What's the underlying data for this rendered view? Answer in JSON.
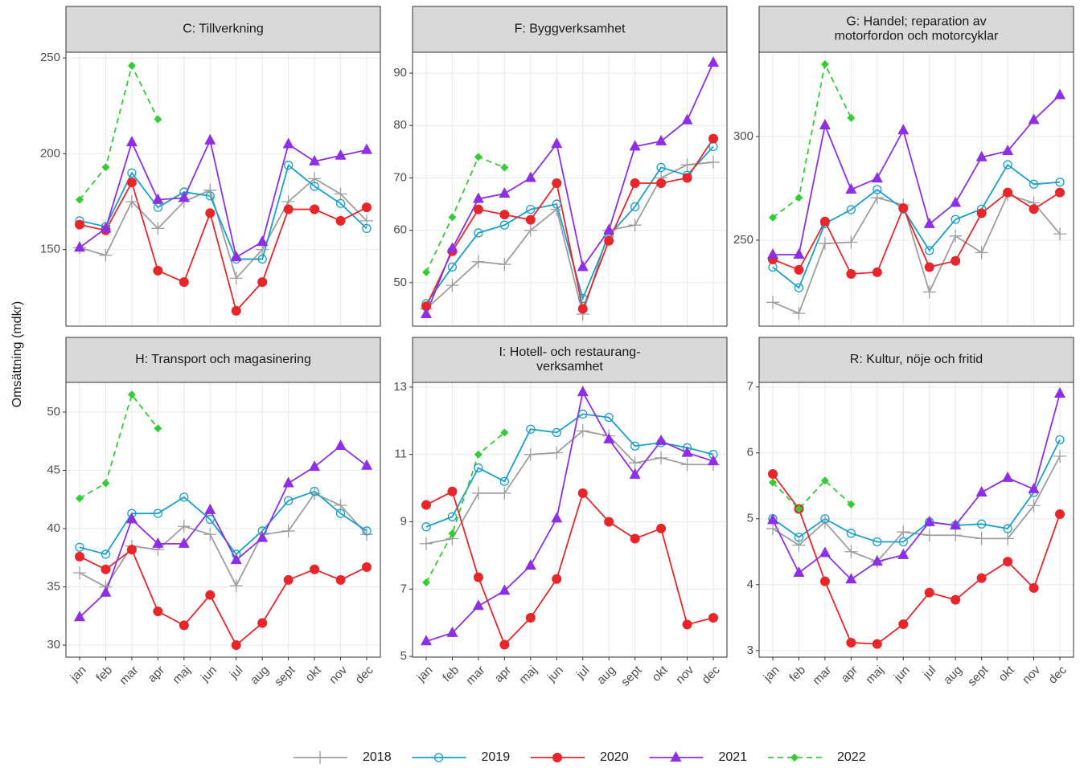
{
  "ylabel": "Omsättning (mdkr)",
  "chart_data": [
    {
      "type": "line",
      "title": [
        "C: Tillverkning"
      ],
      "categories": [
        "jan",
        "feb",
        "mar",
        "apr",
        "maj",
        "jun",
        "jul",
        "aug",
        "sept",
        "okt",
        "nov",
        "dec"
      ],
      "ylim": [
        110,
        253
      ],
      "yticks": [
        150,
        200,
        250
      ],
      "grid": true,
      "series": [
        {
          "name": "2018",
          "color": "#9e9e9e",
          "marker": "plus",
          "dash": "solid",
          "values": [
            151,
            147,
            175,
            161,
            175,
            181,
            135,
            150,
            175,
            187,
            179,
            165
          ]
        },
        {
          "name": "2019",
          "color": "#1a9fcc",
          "marker": "open-circle",
          "dash": "solid",
          "values": [
            165,
            162,
            190,
            172,
            180,
            178,
            145,
            145,
            194,
            183,
            174,
            161
          ]
        },
        {
          "name": "2020",
          "color": "#e8262a",
          "marker": "circle",
          "dash": "solid",
          "values": [
            163,
            160,
            185,
            139,
            133,
            169,
            118,
            133,
            171,
            171,
            165,
            172
          ]
        },
        {
          "name": "2021",
          "color": "#8e2ee6",
          "marker": "triangle",
          "dash": "solid",
          "values": [
            151,
            161,
            206,
            176,
            177,
            207,
            146,
            154,
            205,
            196,
            199,
            202
          ]
        },
        {
          "name": "2022",
          "color": "#33cc33",
          "marker": "diamond",
          "dash": "dashed",
          "values": [
            176,
            193,
            246,
            218,
            null,
            null,
            null,
            null,
            null,
            null,
            null,
            null
          ]
        }
      ]
    },
    {
      "type": "line",
      "title": [
        "F: Byggverksamhet"
      ],
      "categories": [
        "jan",
        "feb",
        "mar",
        "apr",
        "maj",
        "jun",
        "jul",
        "aug",
        "sept",
        "okt",
        "nov",
        "dec"
      ],
      "ylim": [
        41.7,
        94
      ],
      "yticks": [
        50,
        60,
        70,
        80,
        90
      ],
      "grid": true,
      "series": [
        {
          "name": "2018",
          "color": "#9e9e9e",
          "marker": "plus",
          "dash": "solid",
          "values": [
            45,
            49.5,
            54,
            53.5,
            60,
            64,
            44,
            60,
            61,
            70,
            72.5,
            73
          ]
        },
        {
          "name": "2019",
          "color": "#1a9fcc",
          "marker": "open-circle",
          "dash": "solid",
          "values": [
            46,
            53,
            59.5,
            61,
            64,
            65,
            47,
            59,
            64.5,
            72,
            70.5,
            76
          ]
        },
        {
          "name": "2020",
          "color": "#e8262a",
          "marker": "circle",
          "dash": "solid",
          "values": [
            45.5,
            56,
            64,
            63,
            62,
            69,
            45,
            58,
            69,
            69,
            70,
            77.5
          ]
        },
        {
          "name": "2021",
          "color": "#8e2ee6",
          "marker": "triangle",
          "dash": "solid",
          "values": [
            44,
            56.5,
            66,
            67,
            70,
            76.5,
            53,
            60,
            76,
            77,
            81,
            92
          ]
        },
        {
          "name": "2022",
          "color": "#33cc33",
          "marker": "diamond",
          "dash": "dashed",
          "values": [
            52,
            62.5,
            74,
            72,
            null,
            null,
            null,
            null,
            null,
            null,
            null,
            null
          ]
        }
      ]
    },
    {
      "type": "line",
      "title": [
        "G: Handel; reparation av",
        "motorfordon och motorcyklar"
      ],
      "categories": [
        "jan",
        "feb",
        "mar",
        "apr",
        "maj",
        "jun",
        "jul",
        "aug",
        "sept",
        "okt",
        "nov",
        "dec"
      ],
      "ylim": [
        208.5,
        340.7
      ],
      "yticks": [
        250,
        300
      ],
      "grid": true,
      "series": [
        {
          "name": "2018",
          "color": "#9e9e9e",
          "marker": "plus",
          "dash": "solid",
          "values": [
            220,
            214.7,
            248.4,
            249,
            270.5,
            267,
            225,
            252,
            244,
            272,
            268,
            253
          ]
        },
        {
          "name": "2019",
          "color": "#1a9fcc",
          "marker": "open-circle",
          "dash": "solid",
          "values": [
            237,
            227,
            258,
            264.7,
            274.4,
            265,
            245,
            260,
            265,
            286.4,
            277,
            278
          ]
        },
        {
          "name": "2020",
          "color": "#e8262a",
          "marker": "circle",
          "dash": "solid",
          "values": [
            240.7,
            235.7,
            259,
            233.7,
            234.5,
            265.5,
            237,
            240,
            263,
            273,
            265,
            273
          ]
        },
        {
          "name": "2021",
          "color": "#8e2ee6",
          "marker": "triangle",
          "dash": "solid",
          "values": [
            243,
            243,
            305.4,
            274.4,
            279.8,
            303,
            257.8,
            268,
            290,
            293,
            308,
            320
          ]
        },
        {
          "name": "2022",
          "color": "#33cc33",
          "marker": "diamond",
          "dash": "dashed",
          "values": [
            260.9,
            270.5,
            334.9,
            309,
            null,
            null,
            null,
            null,
            null,
            null,
            null,
            null
          ]
        }
      ]
    },
    {
      "type": "line",
      "title": [
        "H: Transport och magasinering"
      ],
      "categories": [
        "jan",
        "feb",
        "mar",
        "apr",
        "maj",
        "jun",
        "jul",
        "aug",
        "sept",
        "okt",
        "nov",
        "dec"
      ],
      "ylim": [
        28.97,
        52.55
      ],
      "yticks": [
        30,
        35,
        40,
        45,
        50
      ],
      "grid": true,
      "series": [
        {
          "name": "2018",
          "color": "#9e9e9e",
          "marker": "plus",
          "dash": "solid",
          "values": [
            36.2,
            35,
            38.5,
            38.2,
            40.2,
            39.5,
            35.1,
            39.5,
            39.8,
            43,
            42,
            39.5
          ]
        },
        {
          "name": "2019",
          "color": "#1a9fcc",
          "marker": "open-circle",
          "dash": "solid",
          "values": [
            38.4,
            37.8,
            41.3,
            41.3,
            42.7,
            40.8,
            37.8,
            39.8,
            42.4,
            43.2,
            41.3,
            39.8
          ]
        },
        {
          "name": "2020",
          "color": "#e8262a",
          "marker": "circle",
          "dash": "solid",
          "values": [
            37.6,
            36.5,
            38.2,
            32.9,
            31.7,
            34.3,
            30,
            31.9,
            35.6,
            36.5,
            35.6,
            36.7
          ]
        },
        {
          "name": "2021",
          "color": "#8e2ee6",
          "marker": "triangle",
          "dash": "solid",
          "values": [
            32.4,
            34.5,
            40.8,
            38.7,
            38.7,
            41.6,
            37.3,
            39.2,
            43.9,
            45.3,
            47.1,
            45.4
          ]
        },
        {
          "name": "2022",
          "color": "#33cc33",
          "marker": "diamond",
          "dash": "dashed",
          "values": [
            42.6,
            43.9,
            51.5,
            48.6,
            null,
            null,
            null,
            null,
            null,
            null,
            null,
            null
          ]
        }
      ]
    },
    {
      "type": "line",
      "title": [
        "I: Hotell- och restaurang-",
        "verksamhet"
      ],
      "categories": [
        "jan",
        "feb",
        "mar",
        "apr",
        "maj",
        "jun",
        "jul",
        "aug",
        "sept",
        "okt",
        "nov",
        "dec"
      ],
      "ylim": [
        4.98,
        13.14
      ],
      "yticks": [
        5,
        7,
        9,
        11,
        13
      ],
      "grid": true,
      "series": [
        {
          "name": "2018",
          "color": "#9e9e9e",
          "marker": "plus",
          "dash": "solid",
          "values": [
            8.35,
            8.5,
            9.85,
            9.85,
            11,
            11.05,
            11.7,
            11.55,
            10.75,
            10.9,
            10.7,
            10.7
          ]
        },
        {
          "name": "2019",
          "color": "#1a9fcc",
          "marker": "open-circle",
          "dash": "solid",
          "values": [
            8.85,
            9.15,
            10.6,
            10.2,
            11.75,
            11.65,
            12.2,
            12.1,
            11.25,
            11.35,
            11.2,
            11
          ]
        },
        {
          "name": "2020",
          "color": "#e8262a",
          "marker": "circle",
          "dash": "solid",
          "values": [
            9.5,
            9.9,
            7.35,
            5.35,
            6.15,
            7.3,
            9.85,
            9,
            8.5,
            8.8,
            5.95,
            6.15
          ]
        },
        {
          "name": "2021",
          "color": "#8e2ee6",
          "marker": "triangle",
          "dash": "solid",
          "values": [
            5.45,
            5.7,
            6.5,
            6.95,
            7.7,
            9.1,
            12.85,
            11.45,
            10.4,
            11.4,
            11.05,
            10.8
          ]
        },
        {
          "name": "2022",
          "color": "#33cc33",
          "marker": "diamond",
          "dash": "dashed",
          "values": [
            7.2,
            8.65,
            11,
            11.65,
            null,
            null,
            null,
            null,
            null,
            null,
            null,
            null
          ]
        }
      ]
    },
    {
      "type": "line",
      "title": [
        "R: Kultur, nöje och fritid"
      ],
      "categories": [
        "jan",
        "feb",
        "mar",
        "apr",
        "maj",
        "jun",
        "jul",
        "aug",
        "sept",
        "okt",
        "nov",
        "dec"
      ],
      "ylim": [
        2.9,
        7.07
      ],
      "yticks": [
        3,
        4,
        5,
        6,
        7
      ],
      "grid": true,
      "series": [
        {
          "name": "2018",
          "color": "#9e9e9e",
          "marker": "plus",
          "dash": "solid",
          "values": [
            4.85,
            4.6,
            4.95,
            4.5,
            4.35,
            4.8,
            4.75,
            4.75,
            4.7,
            4.7,
            5.2,
            5.95
          ]
        },
        {
          "name": "2019",
          "color": "#1a9fcc",
          "marker": "open-circle",
          "dash": "solid",
          "values": [
            5,
            4.72,
            5,
            4.78,
            4.65,
            4.65,
            4.95,
            4.9,
            4.92,
            4.85,
            5.4,
            6.2
          ]
        },
        {
          "name": "2020",
          "color": "#e8262a",
          "marker": "circle",
          "dash": "solid",
          "values": [
            5.68,
            5.15,
            4.05,
            3.12,
            3.1,
            3.4,
            3.88,
            3.77,
            4.1,
            4.35,
            3.95,
            5.07
          ]
        },
        {
          "name": "2021",
          "color": "#8e2ee6",
          "marker": "triangle",
          "dash": "solid",
          "values": [
            4.98,
            4.18,
            4.48,
            4.08,
            4.35,
            4.45,
            4.95,
            4.9,
            5.4,
            5.62,
            5.45,
            6.9
          ]
        },
        {
          "name": "2022",
          "color": "#33cc33",
          "marker": "diamond",
          "dash": "dashed",
          "values": [
            5.55,
            5.15,
            5.58,
            5.22,
            null,
            null,
            null,
            null,
            null,
            null,
            null,
            null
          ]
        }
      ]
    }
  ]
}
